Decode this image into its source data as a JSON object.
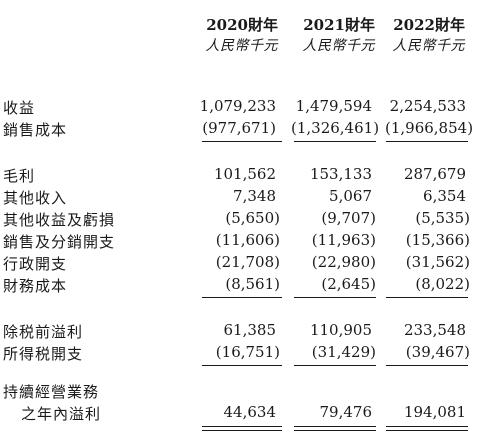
{
  "header": {
    "years": [
      "2020財年",
      "2021財年",
      "2022財年"
    ],
    "units": [
      "人民幣千元",
      "人民幣千元",
      "人民幣千元"
    ]
  },
  "rows": [
    {
      "label": "收益",
      "values": [
        "1,079,233",
        "1,479,594",
        "2,254,533"
      ]
    },
    {
      "label": "銷售成本",
      "values": [
        "(977,671)",
        "(1,326,461)",
        "(1,966,854)"
      ]
    },
    {
      "label": "毛利",
      "values": [
        "101,562",
        "153,133",
        "287,679"
      ]
    },
    {
      "label": "其他收入",
      "values": [
        "7,348",
        "5,067",
        "6,354"
      ]
    },
    {
      "label": "其他收益及虧損",
      "values": [
        "(5,650)",
        "(9,707)",
        "(5,535)"
      ]
    },
    {
      "label": "銷售及分銷開支",
      "values": [
        "(11,606)",
        "(11,963)",
        "(15,366)"
      ]
    },
    {
      "label": "行政開支",
      "values": [
        "(21,708)",
        "(22,980)",
        "(31,562)"
      ]
    },
    {
      "label": "財務成本",
      "values": [
        "(8,561)",
        "(2,645)",
        "(8,022)"
      ]
    },
    {
      "label": "除税前溢利",
      "values": [
        "61,385",
        "110,905",
        "233,548"
      ]
    },
    {
      "label": "所得税開支",
      "values": [
        "(16,751)",
        "(31,429)",
        "(39,467)"
      ]
    },
    {
      "label": "持續經營業務",
      "values": [
        "",
        "",
        ""
      ]
    },
    {
      "label": "之年內溢利",
      "values": [
        "44,634",
        "79,476",
        "194,081"
      ]
    }
  ]
}
